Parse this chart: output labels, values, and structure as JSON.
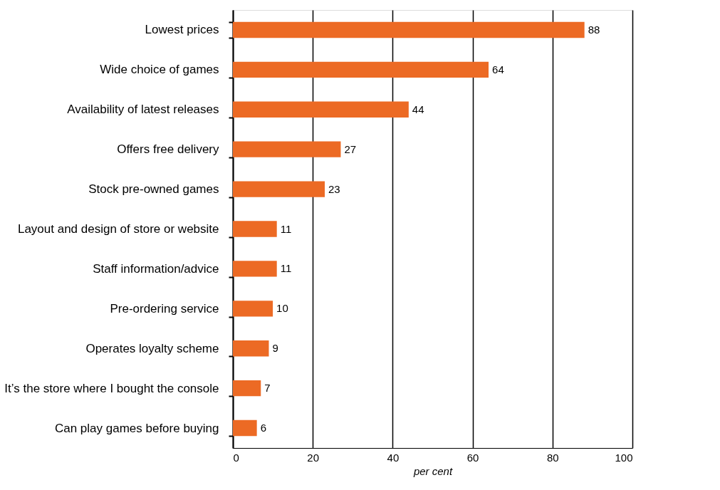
{
  "chart_data": {
    "type": "bar",
    "orientation": "horizontal",
    "xlabel": "per cent",
    "categories": [
      "Lowest prices",
      "Wide choice of games",
      "Availability of latest releases",
      "Offers free delivery",
      "Stock pre-owned games",
      "Layout and design of store or website",
      "Staff information/advice",
      "Pre-ordering service",
      "Operates loyalty scheme",
      "It’s the store where I bought the console",
      "Can play games before buying"
    ],
    "values": [
      88,
      64,
      44,
      27,
      23,
      11,
      11,
      10,
      9,
      7,
      6
    ],
    "color": "#ec6a24",
    "xlim": [
      0,
      100
    ],
    "xticks": [
      0,
      20,
      40,
      60,
      80,
      100
    ],
    "grid": "x",
    "data_labels": true
  }
}
